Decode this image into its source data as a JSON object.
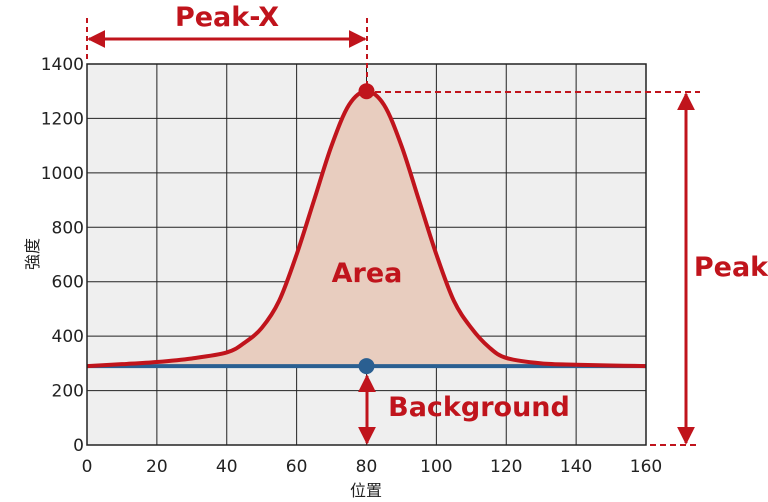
{
  "chart_data": {
    "type": "area",
    "xlabel": "位置",
    "ylabel": "強度",
    "xlim": [
      0,
      160
    ],
    "ylim": [
      0,
      1400
    ],
    "x_ticks": [
      0,
      20,
      40,
      60,
      80,
      100,
      120,
      140,
      160
    ],
    "y_ticks": [
      0,
      200,
      400,
      600,
      800,
      1000,
      1200,
      1400
    ],
    "grid": true,
    "background_level": 290,
    "peak": {
      "x": 80,
      "y": 1300
    },
    "series": [
      {
        "x": [
          0,
          10,
          20,
          30,
          40,
          45,
          50,
          55,
          60,
          65,
          70,
          75,
          80,
          85,
          90,
          95,
          100,
          105,
          110,
          115,
          120,
          130,
          140,
          150,
          160
        ],
        "values": [
          290,
          297,
          305,
          318,
          340,
          375,
          430,
          530,
          700,
          900,
          1100,
          1250,
          1300,
          1250,
          1100,
          900,
          700,
          530,
          430,
          360,
          320,
          300,
          295,
          292,
          290
        ]
      }
    ],
    "annotations": {
      "peak_x": "Peak-X",
      "area": "Area",
      "peak": "Peak",
      "background": "Background"
    },
    "colors": {
      "curve": "#c0141c",
      "fill": "#e8cdbf",
      "baseline": "#2a5f91",
      "plot_bg": "#efefef",
      "grid": "#222222"
    }
  }
}
